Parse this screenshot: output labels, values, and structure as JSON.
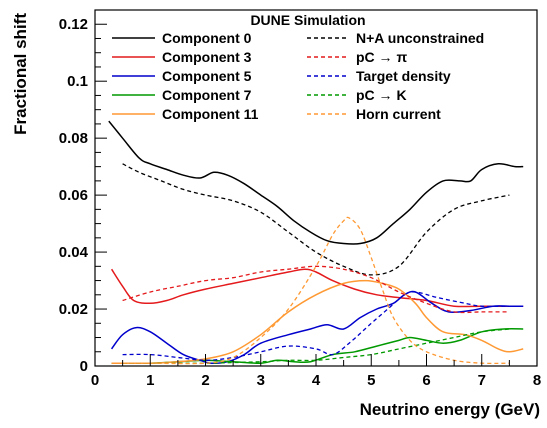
{
  "chart_data": {
    "type": "line",
    "title": "DUNE Simulation",
    "xlabel": "Neutrino energy (GeV)",
    "ylabel": "Fractional shift",
    "xlim": [
      0,
      8
    ],
    "ylim": [
      0,
      0.125
    ],
    "x_ticks": [
      0,
      1,
      2,
      3,
      4,
      5,
      6,
      7,
      8
    ],
    "x_tick_labels": [
      "0",
      "1",
      "2",
      "3",
      "4",
      "5",
      "6",
      "7",
      "8"
    ],
    "y_ticks": [
      0,
      0.02,
      0.04,
      0.06,
      0.08,
      0.1,
      0.12
    ],
    "y_tick_labels": [
      "0",
      "0.02",
      "0.04",
      "0.06",
      "0.08",
      "0.1",
      "0.12"
    ],
    "grid": false,
    "legend_position": "top",
    "series": [
      {
        "name": "Component 0",
        "color": "#000000",
        "dash": "solid",
        "points": [
          [
            0.25,
            0.086
          ],
          [
            0.5,
            0.08
          ],
          [
            0.8,
            0.073
          ],
          [
            1.0,
            0.071
          ],
          [
            1.3,
            0.069
          ],
          [
            1.6,
            0.067
          ],
          [
            1.9,
            0.066
          ],
          [
            2.15,
            0.068
          ],
          [
            2.4,
            0.067
          ],
          [
            2.7,
            0.064
          ],
          [
            3.0,
            0.06
          ],
          [
            3.3,
            0.056
          ],
          [
            3.6,
            0.051
          ],
          [
            3.9,
            0.047
          ],
          [
            4.2,
            0.044
          ],
          [
            4.5,
            0.043
          ],
          [
            4.8,
            0.043
          ],
          [
            5.1,
            0.045
          ],
          [
            5.4,
            0.05
          ],
          [
            5.7,
            0.055
          ],
          [
            6.0,
            0.061
          ],
          [
            6.3,
            0.065
          ],
          [
            6.6,
            0.065
          ],
          [
            6.8,
            0.065
          ],
          [
            7.0,
            0.069
          ],
          [
            7.3,
            0.071
          ],
          [
            7.6,
            0.07
          ],
          [
            7.75,
            0.07
          ]
        ]
      },
      {
        "name": "Component 3",
        "color": "#e41a1c",
        "dash": "solid",
        "points": [
          [
            0.3,
            0.034
          ],
          [
            0.5,
            0.028
          ],
          [
            0.7,
            0.023
          ],
          [
            1.0,
            0.022
          ],
          [
            1.3,
            0.023
          ],
          [
            1.6,
            0.025
          ],
          [
            2.0,
            0.027
          ],
          [
            2.5,
            0.029
          ],
          [
            3.0,
            0.031
          ],
          [
            3.5,
            0.033
          ],
          [
            3.8,
            0.034
          ],
          [
            4.0,
            0.033
          ],
          [
            4.3,
            0.03
          ],
          [
            4.7,
            0.027
          ],
          [
            5.1,
            0.025
          ],
          [
            5.5,
            0.024
          ],
          [
            6.0,
            0.023
          ],
          [
            6.5,
            0.021
          ],
          [
            7.0,
            0.021
          ],
          [
            7.5,
            0.021
          ],
          [
            7.75,
            0.021
          ]
        ]
      },
      {
        "name": "Component 5",
        "color": "#0000cc",
        "dash": "solid",
        "points": [
          [
            0.3,
            0.006
          ],
          [
            0.5,
            0.011
          ],
          [
            0.75,
            0.0135
          ],
          [
            1.0,
            0.012
          ],
          [
            1.3,
            0.008
          ],
          [
            1.6,
            0.004
          ],
          [
            1.9,
            0.002
          ],
          [
            2.1,
            0.001
          ],
          [
            2.4,
            0.0015
          ],
          [
            2.7,
            0.004
          ],
          [
            3.0,
            0.008
          ],
          [
            3.5,
            0.011
          ],
          [
            3.9,
            0.013
          ],
          [
            4.2,
            0.0145
          ],
          [
            4.5,
            0.013
          ],
          [
            4.8,
            0.017
          ],
          [
            5.1,
            0.02
          ],
          [
            5.4,
            0.022
          ],
          [
            5.6,
            0.025
          ],
          [
            5.8,
            0.026
          ],
          [
            6.1,
            0.022
          ],
          [
            6.4,
            0.019
          ],
          [
            6.8,
            0.0195
          ],
          [
            7.2,
            0.021
          ],
          [
            7.5,
            0.021
          ],
          [
            7.75,
            0.021
          ]
        ]
      },
      {
        "name": "Component 7",
        "color": "#009900",
        "dash": "solid",
        "points": [
          [
            0.3,
            0.001
          ],
          [
            1.0,
            0.001
          ],
          [
            1.5,
            0.0015
          ],
          [
            2.0,
            0.002
          ],
          [
            2.5,
            0.0015
          ],
          [
            3.0,
            0.001
          ],
          [
            3.3,
            0.002
          ],
          [
            3.6,
            0.0015
          ],
          [
            3.9,
            0.0015
          ],
          [
            4.3,
            0.004
          ],
          [
            4.7,
            0.005
          ],
          [
            5.1,
            0.007
          ],
          [
            5.5,
            0.009
          ],
          [
            5.7,
            0.01
          ],
          [
            6.0,
            0.009
          ],
          [
            6.3,
            0.008
          ],
          [
            6.6,
            0.009
          ],
          [
            7.0,
            0.012
          ],
          [
            7.4,
            0.013
          ],
          [
            7.75,
            0.013
          ]
        ]
      },
      {
        "name": "Component 11",
        "color": "#ff9933",
        "dash": "solid",
        "points": [
          [
            0.3,
            0.001
          ],
          [
            1.0,
            0.001
          ],
          [
            1.5,
            0.0015
          ],
          [
            2.0,
            0.0025
          ],
          [
            2.5,
            0.005
          ],
          [
            3.0,
            0.011
          ],
          [
            3.5,
            0.019
          ],
          [
            4.0,
            0.025
          ],
          [
            4.5,
            0.029
          ],
          [
            4.9,
            0.03
          ],
          [
            5.2,
            0.029
          ],
          [
            5.5,
            0.027
          ],
          [
            5.8,
            0.022
          ],
          [
            6.0,
            0.017
          ],
          [
            6.3,
            0.012
          ],
          [
            6.7,
            0.011
          ],
          [
            7.0,
            0.009
          ],
          [
            7.3,
            0.006
          ],
          [
            7.5,
            0.005
          ],
          [
            7.75,
            0.006
          ]
        ]
      },
      {
        "name": "N+A unconstrained",
        "color": "#000000",
        "dash": "dashed",
        "points": [
          [
            0.5,
            0.071
          ],
          [
            0.8,
            0.068
          ],
          [
            1.2,
            0.065
          ],
          [
            1.6,
            0.062
          ],
          [
            2.0,
            0.06
          ],
          [
            2.5,
            0.058
          ],
          [
            3.0,
            0.054
          ],
          [
            3.5,
            0.047
          ],
          [
            4.0,
            0.04
          ],
          [
            4.5,
            0.035
          ],
          [
            5.0,
            0.032
          ],
          [
            5.5,
            0.035
          ],
          [
            6.0,
            0.047
          ],
          [
            6.5,
            0.055
          ],
          [
            7.0,
            0.058
          ],
          [
            7.5,
            0.06
          ]
        ]
      },
      {
        "name": "pC → π",
        "color": "#e41a1c",
        "dash": "dashed",
        "points": [
          [
            0.5,
            0.023
          ],
          [
            1.0,
            0.026
          ],
          [
            1.5,
            0.028
          ],
          [
            2.0,
            0.03
          ],
          [
            2.5,
            0.031
          ],
          [
            3.0,
            0.033
          ],
          [
            3.5,
            0.034
          ],
          [
            4.0,
            0.035
          ],
          [
            4.5,
            0.034
          ],
          [
            5.0,
            0.031
          ],
          [
            5.5,
            0.026
          ],
          [
            6.0,
            0.022
          ],
          [
            6.5,
            0.019
          ],
          [
            7.0,
            0.019
          ],
          [
            7.5,
            0.019
          ]
        ]
      },
      {
        "name": "Target density",
        "color": "#0000cc",
        "dash": "dashed",
        "points": [
          [
            0.5,
            0.004
          ],
          [
            1.0,
            0.004
          ],
          [
            1.5,
            0.003
          ],
          [
            2.0,
            0.002
          ],
          [
            2.5,
            0.003
          ],
          [
            3.0,
            0.005
          ],
          [
            3.5,
            0.007
          ],
          [
            4.0,
            0.006
          ],
          [
            4.3,
            0.004
          ],
          [
            4.6,
            0.008
          ],
          [
            5.0,
            0.015
          ],
          [
            5.3,
            0.02
          ],
          [
            5.6,
            0.025
          ],
          [
            5.8,
            0.026
          ],
          [
            6.2,
            0.024
          ],
          [
            6.7,
            0.022
          ],
          [
            7.0,
            0.021
          ],
          [
            7.5,
            0.021
          ]
        ]
      },
      {
        "name": "pC → K",
        "color": "#009900",
        "dash": "dashed",
        "points": [
          [
            0.5,
            0.001
          ],
          [
            1.0,
            0.001
          ],
          [
            2.0,
            0.001
          ],
          [
            3.0,
            0.0015
          ],
          [
            3.5,
            0.002
          ],
          [
            4.0,
            0.002
          ],
          [
            4.5,
            0.003
          ],
          [
            5.0,
            0.004
          ],
          [
            5.5,
            0.006
          ],
          [
            6.0,
            0.008
          ],
          [
            6.5,
            0.01
          ],
          [
            7.0,
            0.012
          ],
          [
            7.5,
            0.013
          ]
        ]
      },
      {
        "name": "Horn current",
        "color": "#ff9933",
        "dash": "dashed",
        "points": [
          [
            0.5,
            0.001
          ],
          [
            1.0,
            0.001
          ],
          [
            2.0,
            0.001
          ],
          [
            2.5,
            0.003
          ],
          [
            3.0,
            0.01
          ],
          [
            3.5,
            0.02
          ],
          [
            4.0,
            0.035
          ],
          [
            4.3,
            0.046
          ],
          [
            4.5,
            0.051
          ],
          [
            4.6,
            0.052
          ],
          [
            4.8,
            0.048
          ],
          [
            5.0,
            0.038
          ],
          [
            5.2,
            0.027
          ],
          [
            5.4,
            0.017
          ],
          [
            5.7,
            0.009
          ],
          [
            6.0,
            0.005
          ],
          [
            6.5,
            0.002
          ],
          [
            7.0,
            0.001
          ],
          [
            7.5,
            0.001
          ]
        ]
      }
    ]
  }
}
